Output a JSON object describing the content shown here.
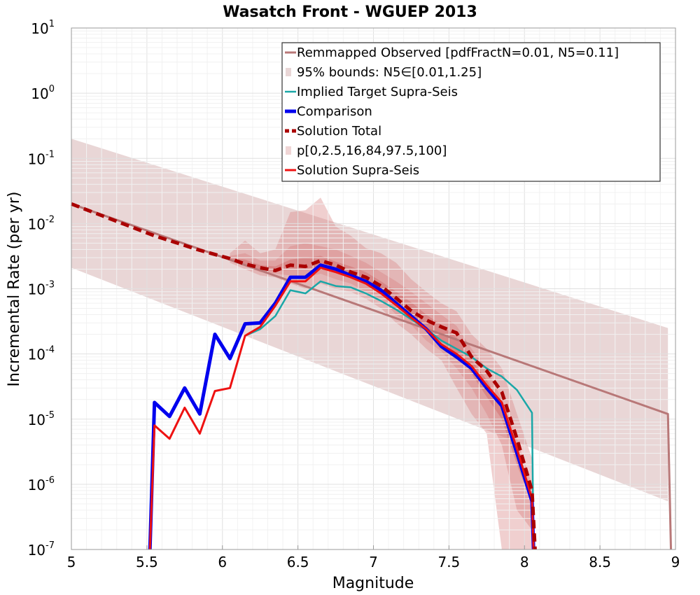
{
  "chart_data": {
    "type": "line",
    "title": "Wasatch Front - WGUEP 2013",
    "xlabel": "Magnitude",
    "ylabel": "Incremental Rate (per yr)",
    "xlim": [
      5,
      9
    ],
    "ylim": [
      1e-07,
      10
    ],
    "yscale": "log",
    "grid": true,
    "legend_position": "top-right",
    "x_ticks": [
      "5",
      "5.5",
      "6",
      "6.5",
      "7",
      "7.5",
      "8",
      "8.5",
      "9"
    ],
    "y_tick_exponents": [
      "-7",
      "-6",
      "-5",
      "-4",
      "-3",
      "-2",
      "-1",
      "0",
      "1"
    ],
    "y_tick_base": "10",
    "colors": {
      "remapped": "#b87878",
      "bounds95": "#e9d6d6",
      "implied": "#1aa7a7",
      "comparison": "#0000ee",
      "solution_total": "#aa0000",
      "percentiles": "#d98888",
      "supra": "#ee1111"
    },
    "legend": [
      {
        "key": "remapped",
        "label": "Remmapped Observed [pdfFractN=0.01, N5=0.11]"
      },
      {
        "key": "bounds95",
        "label": "95% bounds: N5∈[0.01,1.25]"
      },
      {
        "key": "implied",
        "label": "Implied Target Supra-Seis"
      },
      {
        "key": "comparison",
        "label": "Comparison"
      },
      {
        "key": "solution_total",
        "label": "Solution Total"
      },
      {
        "key": "percentiles",
        "label": "p[0,2.5,16,84,97.5,100]"
      },
      {
        "key": "supra",
        "label": "Solution Supra-Seis"
      }
    ],
    "bounds95": {
      "x": [
        5.0,
        8.95
      ],
      "lower": [
        0.0021,
        5.5e-07
      ],
      "upper": [
        0.2,
        0.00025
      ]
    },
    "percentile_bands": {
      "x": [
        6.05,
        6.15,
        6.25,
        6.35,
        6.45,
        6.55,
        6.65,
        6.75,
        6.85,
        6.95,
        7.05,
        7.15,
        7.25,
        7.35,
        7.45,
        7.55,
        7.65,
        7.75,
        7.85,
        7.95,
        8.05
      ],
      "outer_lower": [
        0.0025,
        0.002,
        0.0016,
        0.0015,
        0.0012,
        0.001,
        0.0012,
        0.001,
        0.0009,
        0.0007,
        0.0005,
        0.0003,
        0.0002,
        0.00012,
        8e-05,
        3e-05,
        1.2e-05,
        6e-06,
        1e-07,
        1e-07,
        1e-07
      ],
      "outer_upper": [
        0.0035,
        0.0055,
        0.0035,
        0.004,
        0.015,
        0.016,
        0.025,
        0.009,
        0.0065,
        0.0042,
        0.0035,
        0.0025,
        0.0014,
        0.0009,
        0.0006,
        0.00045,
        0.0002,
        0.00012,
        6e-05,
        1.2e-05,
        2.5e-06
      ],
      "mid_lower": [
        0.0027,
        0.0022,
        0.0018,
        0.0017,
        0.0016,
        0.0015,
        0.0017,
        0.0014,
        0.0012,
        0.0009,
        0.0007,
        0.0004,
        0.00028,
        0.00016,
        0.00011,
        6e-05,
        3e-05,
        1.2e-05,
        4e-06,
        4e-07,
        2e-07
      ],
      "mid_upper": [
        0.0032,
        0.0035,
        0.0027,
        0.0027,
        0.0045,
        0.005,
        0.0045,
        0.004,
        0.0032,
        0.0025,
        0.0018,
        0.0013,
        0.0009,
        0.0006,
        0.0004,
        0.00027,
        0.00012,
        6e-05,
        2e-05,
        5e-06,
        1e-06
      ],
      "inner_lower": [
        0.0029,
        0.0024,
        0.002,
        0.0019,
        0.002,
        0.002,
        0.0022,
        0.0019,
        0.0015,
        0.0012,
        0.0009,
        0.0006,
        0.0004,
        0.00024,
        0.00016,
        0.0001,
        5e-05,
        2.2e-05,
        1e-05,
        2e-06,
        5e-07
      ],
      "inner_upper": [
        0.003,
        0.0028,
        0.0023,
        0.0022,
        0.0028,
        0.003,
        0.0032,
        0.0026,
        0.0022,
        0.0018,
        0.0013,
        0.0009,
        0.00062,
        0.0004,
        0.00028,
        0.00018,
        8e-05,
        4e-05,
        1.6e-05,
        3e-06,
        8e-07
      ]
    },
    "series": [
      {
        "key": "remapped",
        "name": "Remmapped Observed [pdfFractN=0.01, N5=0.11]",
        "x": [
          5.0,
          8.95,
          8.97
        ],
        "values": [
          0.02,
          1.2e-05,
          1e-07
        ]
      },
      {
        "key": "implied",
        "name": "Implied Target Supra-Seis",
        "x": [
          6.15,
          6.25,
          6.35,
          6.45,
          6.55,
          6.65,
          6.75,
          6.85,
          6.95,
          7.05,
          7.15,
          7.25,
          7.35,
          7.45,
          7.55,
          7.65,
          7.75,
          7.85,
          7.95,
          8.05,
          8.06
        ],
        "values": [
          0.00019,
          0.00024,
          0.00038,
          0.00095,
          0.00085,
          0.0013,
          0.0011,
          0.00105,
          0.00085,
          0.00065,
          0.00048,
          0.00034,
          0.00024,
          0.00016,
          0.00012,
          9e-05,
          6e-05,
          4.5e-05,
          2.8e-05,
          1.25e-05,
          1e-07
        ]
      },
      {
        "key": "comparison",
        "name": "Comparison",
        "x": [
          5.52,
          5.55,
          5.65,
          5.75,
          5.85,
          5.95,
          6.05,
          6.15,
          6.25,
          6.35,
          6.45,
          6.55,
          6.65,
          6.75,
          6.85,
          6.95,
          7.05,
          7.15,
          7.25,
          7.35,
          7.45,
          7.55,
          7.65,
          7.75,
          7.85,
          7.95,
          8.05,
          8.06
        ],
        "values": [
          1e-07,
          1.8e-05,
          1.1e-05,
          3e-05,
          1.2e-05,
          0.0002,
          8.5e-05,
          0.00029,
          0.0003,
          0.0006,
          0.0015,
          0.0015,
          0.0023,
          0.002,
          0.0016,
          0.0013,
          0.00095,
          0.0006,
          0.00038,
          0.00024,
          0.00013,
          9e-05,
          6e-05,
          3e-05,
          1.6e-05,
          3e-06,
          5.5e-07,
          1e-07
        ]
      },
      {
        "key": "solution_total",
        "name": "Solution Total",
        "x": [
          5.0,
          5.25,
          5.55,
          5.85,
          6.05,
          6.15,
          6.25,
          6.35,
          6.45,
          6.55,
          6.65,
          6.75,
          6.85,
          6.95,
          7.05,
          7.15,
          7.25,
          7.35,
          7.45,
          7.55,
          7.65,
          7.75,
          7.85,
          7.95,
          8.05,
          8.07
        ],
        "values": [
          0.02,
          0.012,
          0.0065,
          0.0039,
          0.0029,
          0.0024,
          0.0021,
          0.0019,
          0.0023,
          0.0022,
          0.0027,
          0.0023,
          0.0018,
          0.0015,
          0.0011,
          0.00072,
          0.00046,
          0.00033,
          0.00026,
          0.00021,
          9e-05,
          5.5e-05,
          2.6e-05,
          5e-06,
          8e-07,
          1e-07
        ]
      },
      {
        "key": "supra",
        "name": "Solution Supra-Seis",
        "x": [
          5.52,
          5.55,
          5.65,
          5.75,
          5.85,
          5.95,
          6.05,
          6.15,
          6.25,
          6.35,
          6.45,
          6.55,
          6.65,
          6.75,
          6.85,
          6.95,
          7.05,
          7.15,
          7.25,
          7.35,
          7.45,
          7.55,
          7.65,
          7.75,
          7.85,
          7.95,
          8.05,
          8.06
        ],
        "values": [
          1e-07,
          8e-06,
          5e-06,
          1.5e-05,
          6e-06,
          2.7e-05,
          3e-05,
          0.00019,
          0.00026,
          0.00055,
          0.0013,
          0.0013,
          0.0021,
          0.0018,
          0.0015,
          0.0012,
          0.00085,
          0.00056,
          0.00036,
          0.00024,
          0.00014,
          0.0001,
          6.5e-05,
          3.3e-05,
          1.8e-05,
          3.5e-06,
          6e-07,
          1e-07
        ]
      }
    ]
  }
}
